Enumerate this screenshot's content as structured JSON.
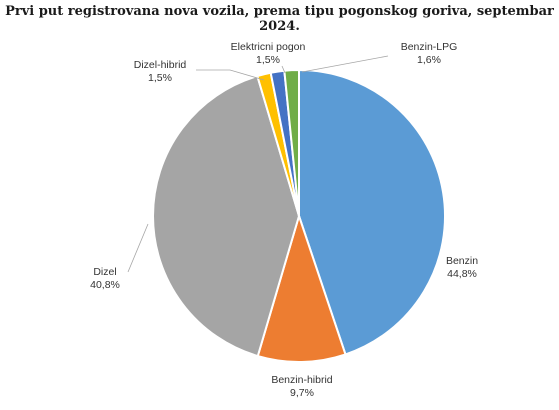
{
  "chart_data": {
    "type": "pie",
    "title": "Prvi put registrovana nova vozila, prema tipu pogonskog goriva, septembar 2024.",
    "slices": [
      {
        "label": "Benzin",
        "value_text": "44,8%",
        "value": 44.8,
        "color": "#5b9bd5"
      },
      {
        "label": "Benzin-hibrid",
        "value_text": "9,7%",
        "value": 9.7,
        "color": "#ed7d31"
      },
      {
        "label": "Dizel",
        "value_text": "40,8%",
        "value": 40.8,
        "color": "#a5a5a5"
      },
      {
        "label": "Dizel-hibrid",
        "value_text": "1,5%",
        "value": 1.5,
        "color": "#ffc000"
      },
      {
        "label": "Elektricni pogon",
        "value_text": "1,5%",
        "value": 1.5,
        "color": "#4472c4"
      },
      {
        "label": "Benzin-LPG",
        "value_text": "1,6%",
        "value": 1.6,
        "color": "#70ad47"
      }
    ]
  }
}
